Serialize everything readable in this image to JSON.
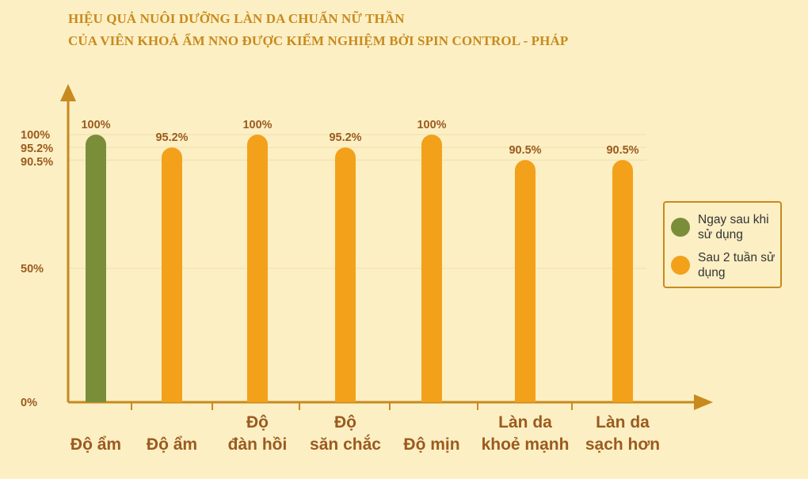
{
  "title_lines": [
    "HIỆU QUẢ NUÔI DƯỠNG LÀN DA CHUẨN NỮ THẦN",
    "CỦA VIÊN KHOÁ ẨM NNO ĐƯỢC KIỂM NGHIỆM BỞI SPIN CONTROL - PHÁP"
  ],
  "legend": [
    {
      "label": "Ngay sau khi sử dụng",
      "color": "#7a8e3a"
    },
    {
      "label": "Sau 2 tuần sử dụng",
      "color": "#f3a11a"
    }
  ],
  "colors": {
    "axis": "#c88a1e",
    "gridline": "#f0dfa8",
    "tick_text": "#9b5b1e",
    "value_text": "#9b5b1e"
  },
  "chart_data": {
    "type": "bar",
    "title": "HIỆU QUẢ NUÔI DƯỠNG LÀN DA CHUẨN NỮ THẦN CỦA VIÊN KHOÁ ẨM NNO ĐƯỢC KIỂM NGHIỆM BỞI SPIN CONTROL - PHÁP",
    "categories": [
      "Độ ẩm",
      "Độ ẩm",
      "Độ đàn hồi",
      "Độ săn chắc",
      "Độ mịn",
      "Làn da khoẻ mạnh",
      "Làn da sạch hơn"
    ],
    "category_lines": [
      [
        "Độ ẩm"
      ],
      [
        "Độ ẩm"
      ],
      [
        "Độ",
        "đàn hồi"
      ],
      [
        "Độ",
        "săn chắc"
      ],
      [
        "Độ mịn"
      ],
      [
        "Làn da",
        "khoẻ mạnh"
      ],
      [
        "Làn da",
        "sạch hơn"
      ]
    ],
    "values": [
      100,
      95.2,
      100,
      95.2,
      100,
      90.5,
      90.5
    ],
    "value_labels": [
      "100%",
      "95.2%",
      "100%",
      "95.2%",
      "100%",
      "90.5%",
      "90.5%"
    ],
    "series_index": [
      0,
      1,
      1,
      1,
      1,
      1,
      1
    ],
    "yticks": [
      {
        "value": 0,
        "label": "0%"
      },
      {
        "value": 50,
        "label": "50%"
      },
      {
        "value": 90.5,
        "label": "90.5%"
      },
      {
        "value": 95.2,
        "label": "95.2%"
      },
      {
        "value": 100,
        "label": "100%"
      }
    ],
    "ylim": [
      0,
      100
    ],
    "legend_position": "right"
  }
}
